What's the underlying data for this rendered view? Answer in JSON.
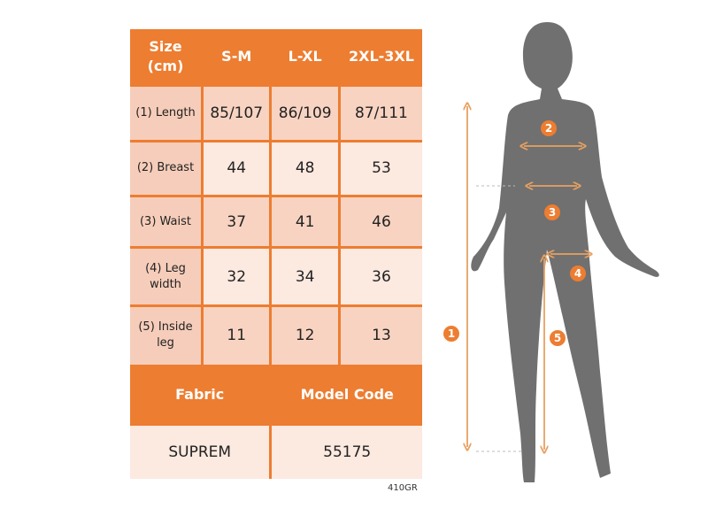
{
  "header": {
    "size": "Size (cm)",
    "sizes": [
      "S-M",
      "L-XL",
      "2XL-3XL"
    ]
  },
  "rows": [
    {
      "label": "(1) Length",
      "values": [
        "85/107",
        "86/109",
        "87/111"
      ]
    },
    {
      "label": "(2) Breast",
      "values": [
        "44",
        "48",
        "53"
      ]
    },
    {
      "label": "(3) Waist",
      "values": [
        "37",
        "41",
        "46"
      ]
    },
    {
      "label": "(4) Leg width",
      "values": [
        "32",
        "34",
        "36"
      ]
    },
    {
      "label": "(5) Inside leg",
      "values": [
        "11",
        "12",
        "13"
      ]
    }
  ],
  "footer": {
    "fabric_label": "Fabric",
    "model_label": "Model Code",
    "fabric": "SUPREM",
    "model": "55175"
  },
  "product_code": "410GR",
  "figure_markers": [
    "1",
    "2",
    "3",
    "4",
    "5"
  ],
  "colors": {
    "accent": "#ED7D31",
    "silhouette": "#707070"
  }
}
